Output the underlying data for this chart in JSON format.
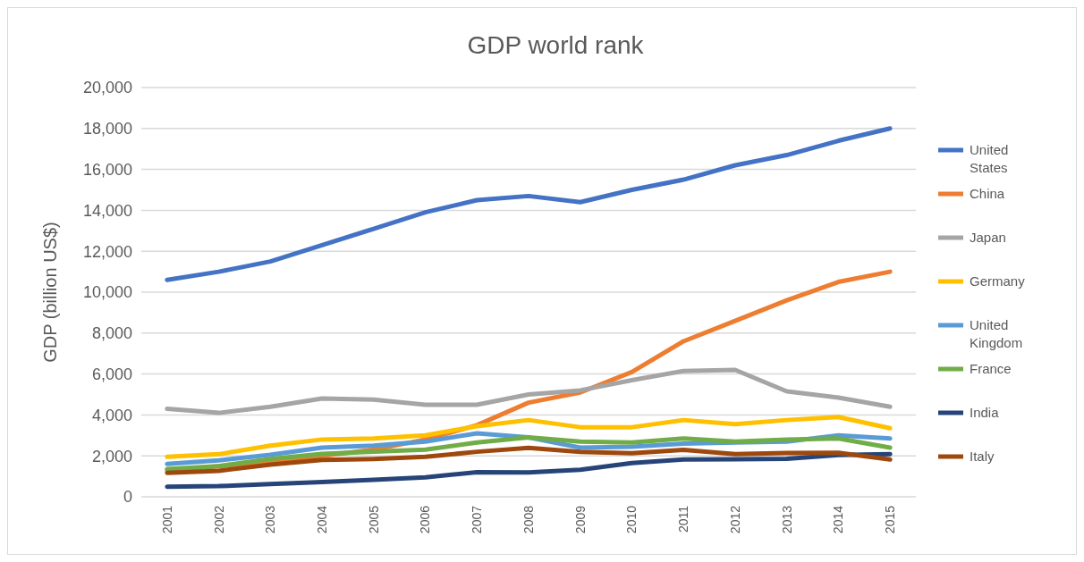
{
  "chart_data": {
    "type": "line",
    "title": "GDP world rank",
    "ylabel": "GDP (billion US$)",
    "categories": [
      "2001",
      "2002",
      "2003",
      "2004",
      "2005",
      "2006",
      "2007",
      "2008",
      "2009",
      "2010",
      "2011",
      "2012",
      "2013",
      "2014",
      "2015"
    ],
    "series": [
      {
        "name": "United States",
        "color": "#4472c4",
        "values": [
          10600,
          11000,
          11500,
          12300,
          13100,
          13900,
          14500,
          14700,
          14400,
          15000,
          15500,
          16200,
          16700,
          17400,
          18000
        ]
      },
      {
        "name": "China",
        "color": "#ed7d31",
        "values": [
          1300,
          1500,
          1700,
          2000,
          2300,
          2800,
          3500,
          4600,
          5100,
          6100,
          7600,
          8600,
          9600,
          10500,
          11000
        ]
      },
      {
        "name": "Japan",
        "color": "#a5a5a5",
        "values": [
          4300,
          4100,
          4400,
          4800,
          4750,
          4500,
          4500,
          5000,
          5200,
          5700,
          6150,
          6200,
          5150,
          4850,
          4400
        ]
      },
      {
        "name": "Germany",
        "color": "#ffc000",
        "values": [
          1950,
          2080,
          2500,
          2800,
          2850,
          3000,
          3450,
          3750,
          3400,
          3400,
          3750,
          3550,
          3750,
          3900,
          3350
        ]
      },
      {
        "name": "United Kingdom",
        "color": "#5b9bd5",
        "values": [
          1600,
          1780,
          2050,
          2400,
          2500,
          2700,
          3100,
          2900,
          2400,
          2450,
          2600,
          2650,
          2700,
          3000,
          2850
        ]
      },
      {
        "name": "France",
        "color": "#70ad47",
        "values": [
          1350,
          1500,
          1850,
          2100,
          2200,
          2300,
          2650,
          2900,
          2700,
          2650,
          2850,
          2700,
          2800,
          2850,
          2400
        ]
      },
      {
        "name": "India",
        "color": "#264478",
        "values": [
          490,
          520,
          620,
          720,
          830,
          950,
          1200,
          1190,
          1320,
          1650,
          1820,
          1830,
          1860,
          2040,
          2090
        ]
      },
      {
        "name": "Italy",
        "color": "#9e480e",
        "values": [
          1170,
          1270,
          1570,
          1800,
          1850,
          1950,
          2200,
          2390,
          2190,
          2130,
          2290,
          2090,
          2140,
          2150,
          1820
        ]
      }
    ],
    "ylim": [
      0,
      20000
    ],
    "yticks": [
      {
        "value": 0,
        "label": "0"
      },
      {
        "value": 2000,
        "label": "2,000"
      },
      {
        "value": 4000,
        "label": "4,000"
      },
      {
        "value": 6000,
        "label": "6,000"
      },
      {
        "value": 8000,
        "label": "8,000"
      },
      {
        "value": 10000,
        "label": "10,000"
      },
      {
        "value": 12000,
        "label": "12,000"
      },
      {
        "value": 14000,
        "label": "14,000"
      },
      {
        "value": 16000,
        "label": "16,000"
      },
      {
        "value": 18000,
        "label": "18,000"
      },
      {
        "value": 20000,
        "label": "20,000"
      }
    ],
    "grid": "y",
    "legend": "right",
    "marker": "none",
    "line_style": "solid"
  }
}
